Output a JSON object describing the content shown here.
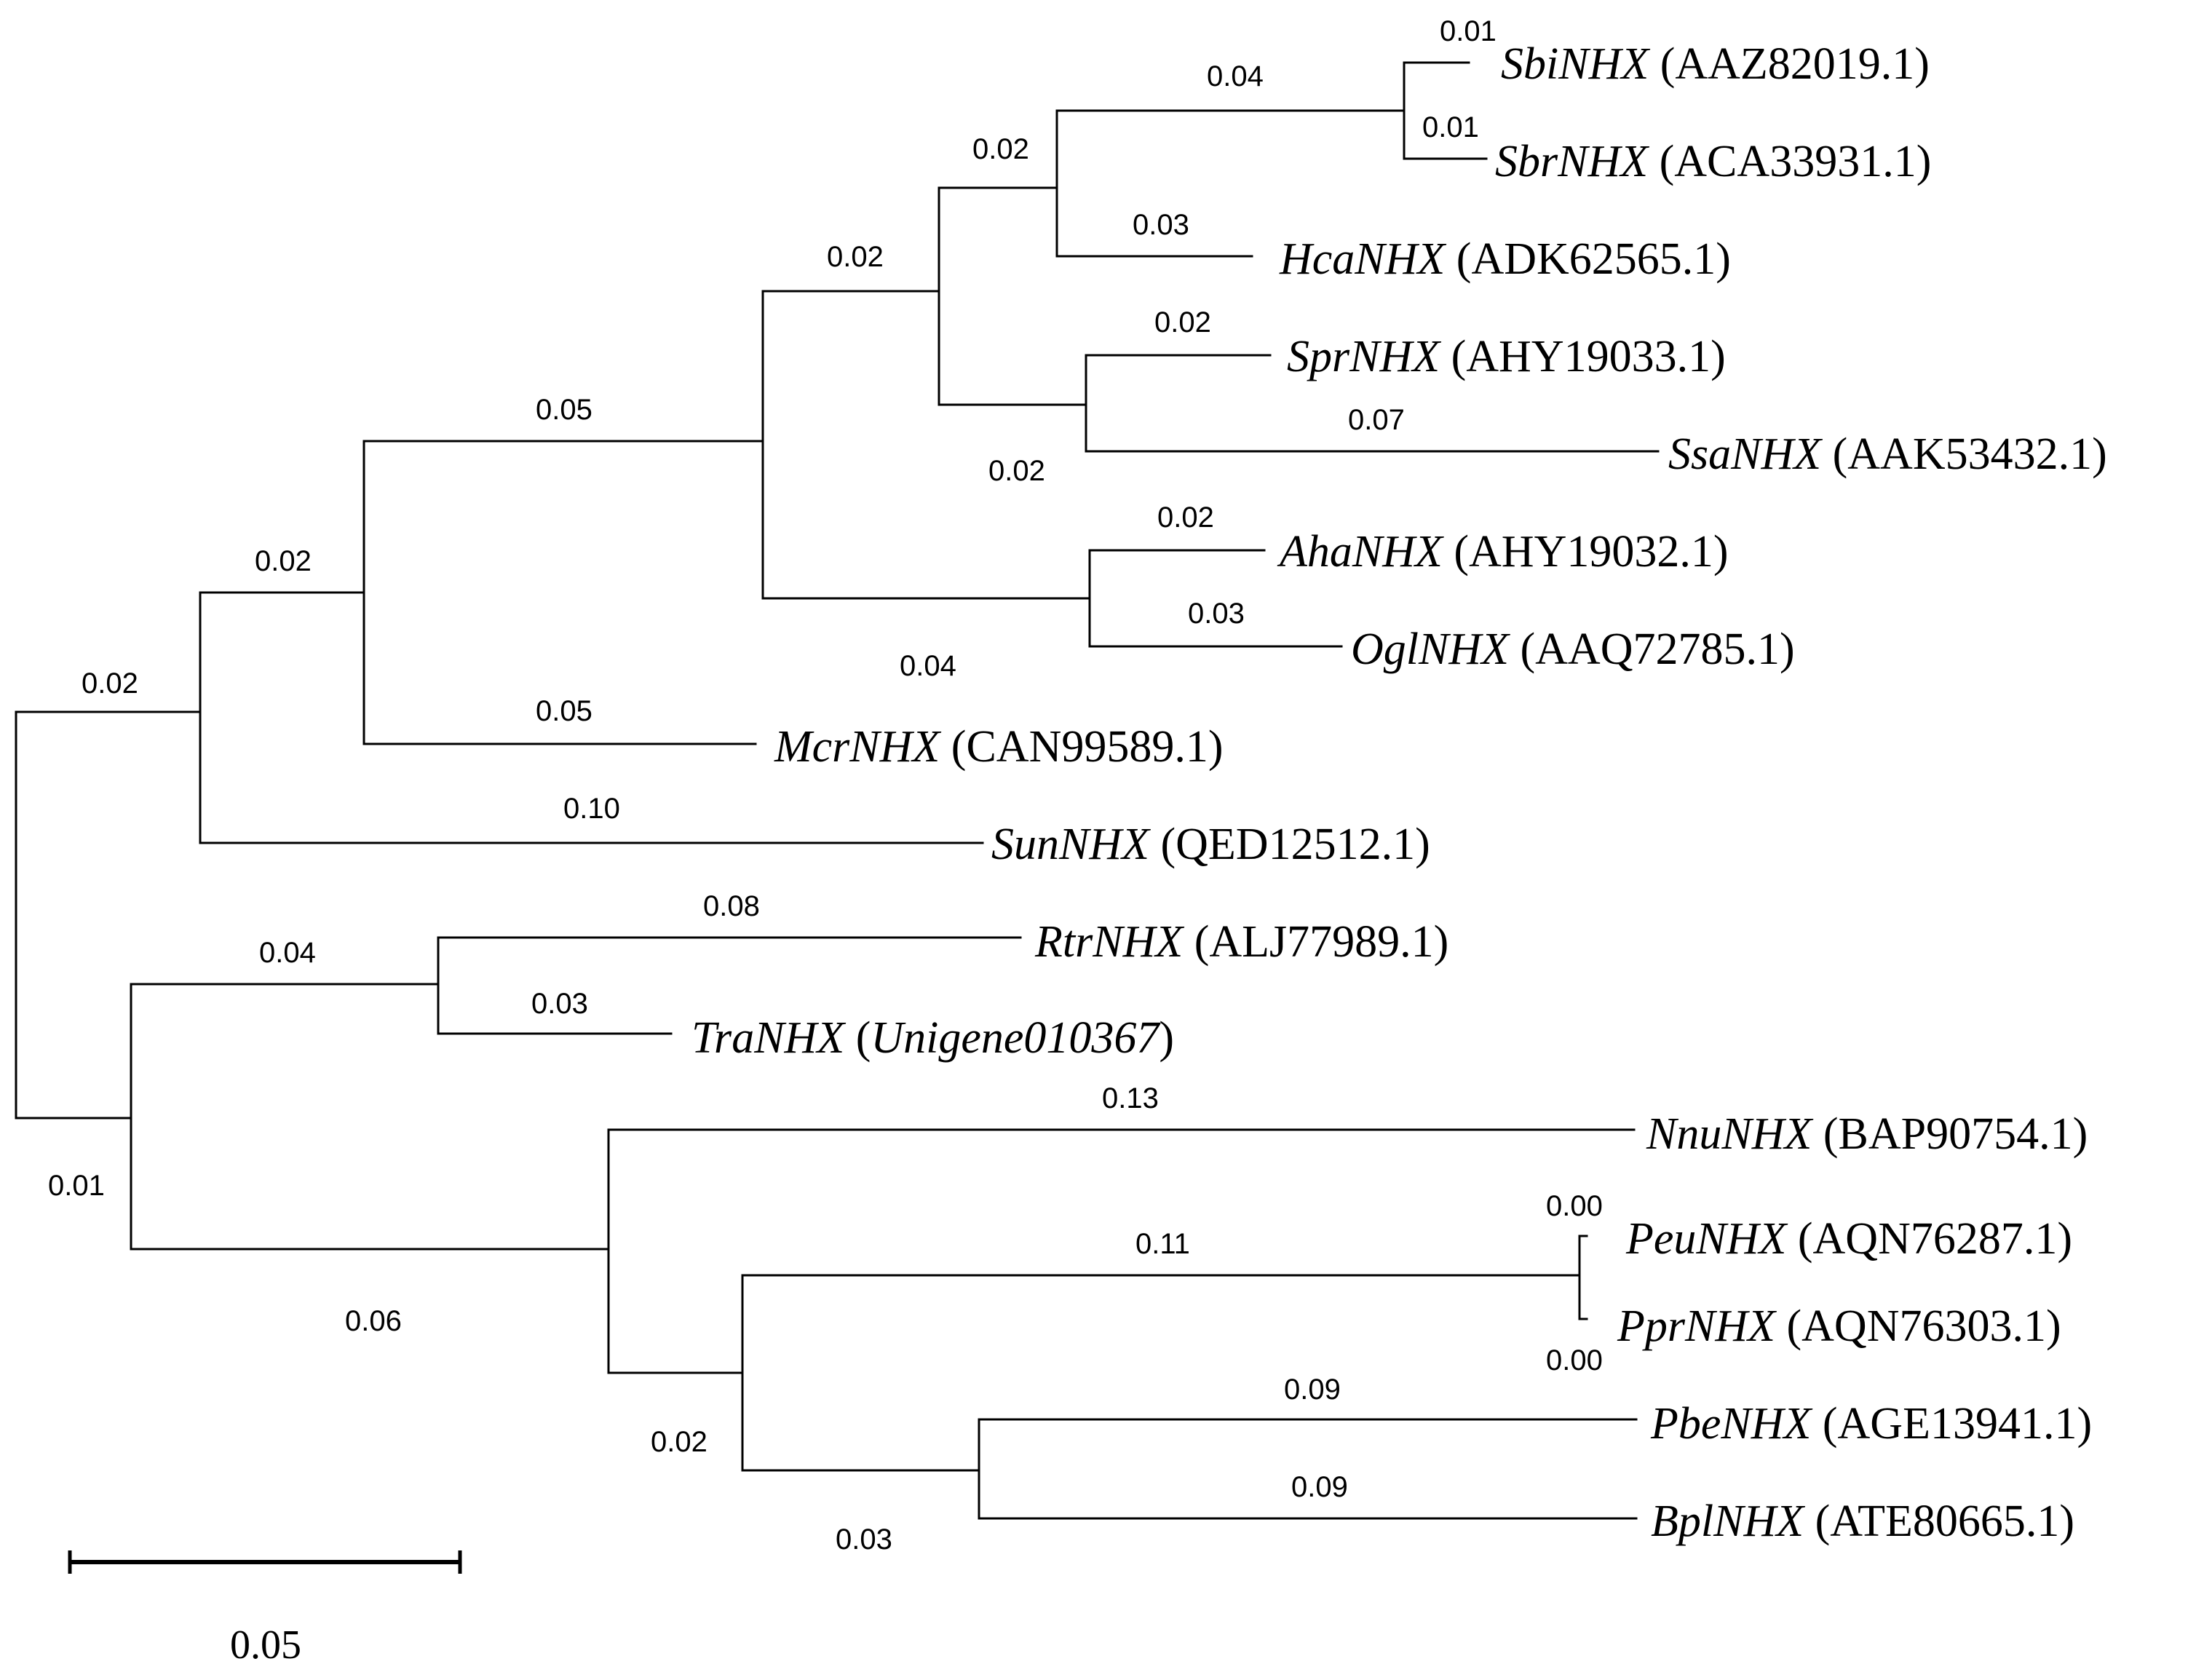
{
  "taxa": {
    "sbi": {
      "species": "SbiNHX",
      "accession": "(AAZ82019.1)"
    },
    "sbr": {
      "species": "SbrNHX",
      "accession": "(ACA33931.1)"
    },
    "hca": {
      "species": "HcaNHX",
      "accession": "(ADK62565.1)"
    },
    "spr": {
      "species": "SprNHX",
      "accession": "(AHY19033.1)"
    },
    "ssa": {
      "species": "SsaNHX",
      "accession": "(AAK53432.1)"
    },
    "aha": {
      "species": "AhaNHX",
      "accession": "(AHY19032.1)"
    },
    "ogl": {
      "species": "OglNHX",
      "accession": "(AAQ72785.1)"
    },
    "mcr": {
      "species": "McrNHX",
      "accession": "(CAN99589.1)"
    },
    "sun": {
      "species": "SunNHX",
      "accession": "(QED12512.1)"
    },
    "rtr": {
      "species": "RtrNHX",
      "accession": "(ALJ77989.1)"
    },
    "tra": {
      "species": "TraNHX",
      "accession_open": "(",
      "accession_italic": "Unigene010367",
      "accession_close": ")"
    },
    "nnu": {
      "species": "NnuNHX",
      "accession": "(BAP90754.1)"
    },
    "peu": {
      "species": "PeuNHX",
      "accession": "(AQN76287.1)"
    },
    "ppr": {
      "species": "PprNHX",
      "accession": "(AQN76303.1)"
    },
    "pbe": {
      "species": "PbeNHX",
      "accession": "(AGE13941.1)"
    },
    "bpl": {
      "species": "BplNHX",
      "accession": "(ATE80665.1)"
    }
  },
  "branch_lengths": {
    "sbi": "0.01",
    "sbr": "0.01",
    "sbi_sbr_stem": "0.04",
    "hca": "0.03",
    "sbi_hca_stem": "0.02",
    "spr": "0.02",
    "ssa": "0.07",
    "spr_ssa_stem": "0.02",
    "core_clade_stem": "0.02",
    "aha": "0.02",
    "ogl": "0.03",
    "aha_ogl_stem": "0.04",
    "big_clade_stem": "0.05",
    "mcr": "0.05",
    "mcr_clade_stem": "0.02",
    "sun": "0.10",
    "upper_root_stem": "0.02",
    "rtr": "0.08",
    "tra": "0.03",
    "rtr_tra_stem": "0.04",
    "nnu": "0.13",
    "peu": "0.00",
    "ppr": "0.00",
    "peu_ppr_stem": "0.11",
    "pbe": "0.09",
    "bpl": "0.09",
    "pbe_bpl_stem": "0.03",
    "poplar_clade_stem": "0.02",
    "nnu_clade_stem": "0.06",
    "lower_root_stem": "0.01"
  },
  "scale_bar": {
    "label": "0.05"
  }
}
